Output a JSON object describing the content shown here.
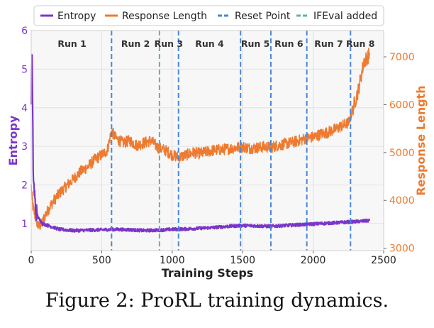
{
  "caption": "Figure 2: ProRL training dynamics.",
  "colors": {
    "entropy": "#7b35c9",
    "response_length": "#ee7a30",
    "reset": "#4a86d8",
    "ifeval": "#5bb5a3",
    "axis_text": "#222222"
  },
  "chart_data": {
    "type": "line",
    "xlabel": "Training Steps",
    "ylabel_left": "Entropy",
    "ylabel_right": "Response Length",
    "xlim": [
      0,
      2500
    ],
    "ylim_left": [
      0.3,
      6.0
    ],
    "ylim_right": [
      2950,
      7550
    ],
    "x_ticks": [
      0,
      500,
      1000,
      1500,
      2000,
      2500
    ],
    "y_ticks_left": [
      1,
      2,
      3,
      4,
      5,
      6
    ],
    "y_ticks_right": [
      3000,
      4000,
      5000,
      6000,
      7000
    ],
    "grid": true,
    "legend_position": "top-center",
    "legend": [
      "Entropy",
      "Response Length",
      "Reset Point",
      "IFEval added"
    ],
    "reset_points": [
      570,
      1045,
      1485,
      1700,
      1955,
      2265
    ],
    "ifeval_point": 910,
    "runs": [
      {
        "label": "Run 1",
        "x_center": 290
      },
      {
        "label": "Run 2",
        "x_center": 740
      },
      {
        "label": "Run 3",
        "x_center": 975
      },
      {
        "label": "Run 4",
        "x_center": 1265
      },
      {
        "label": "Run 5",
        "x_center": 1590
      },
      {
        "label": "Run 6",
        "x_center": 1828
      },
      {
        "label": "Run 7",
        "x_center": 2110
      },
      {
        "label": "Run 8",
        "x_center": 2335
      }
    ],
    "series": [
      {
        "name": "Entropy",
        "axis": "left",
        "x": [
          0,
          5,
          15,
          30,
          50,
          80,
          120,
          200,
          300,
          400,
          500,
          600,
          700,
          800,
          900,
          1000,
          1100,
          1200,
          1300,
          1400,
          1500,
          1600,
          1700,
          1800,
          1900,
          2000,
          2100,
          2200,
          2300,
          2400
        ],
        "y": [
          4.3,
          5.6,
          2.2,
          1.4,
          1.15,
          1.0,
          0.95,
          0.85,
          0.82,
          0.83,
          0.84,
          0.85,
          0.84,
          0.82,
          0.83,
          0.85,
          0.86,
          0.88,
          0.9,
          0.93,
          0.95,
          0.94,
          0.93,
          0.95,
          0.97,
          0.99,
          1.01,
          1.03,
          1.05,
          1.08
        ]
      },
      {
        "name": "Response Length",
        "axis": "right",
        "x": [
          0,
          10,
          25,
          50,
          75,
          100,
          150,
          200,
          250,
          300,
          350,
          400,
          450,
          500,
          540,
          570,
          600,
          650,
          700,
          750,
          800,
          850,
          900,
          950,
          1000,
          1050,
          1100,
          1150,
          1200,
          1250,
          1300,
          1350,
          1400,
          1450,
          1500,
          1550,
          1600,
          1650,
          1700,
          1750,
          1800,
          1850,
          1900,
          1950,
          2000,
          2050,
          2100,
          2150,
          2200,
          2250,
          2280,
          2320,
          2360,
          2400
        ],
        "y": [
          4300,
          3900,
          3700,
          3450,
          3500,
          3700,
          3950,
          4150,
          4300,
          4450,
          4600,
          4700,
          4850,
          4950,
          5050,
          5450,
          5300,
          5200,
          5250,
          5150,
          5200,
          5250,
          5100,
          5050,
          4950,
          4900,
          4950,
          5000,
          4980,
          5020,
          5050,
          5060,
          5080,
          5100,
          5120,
          5090,
          5100,
          5120,
          5110,
          5150,
          5180,
          5210,
          5250,
          5300,
          5320,
          5380,
          5420,
          5480,
          5550,
          5620,
          5900,
          6300,
          6900,
          7050
        ]
      }
    ]
  }
}
